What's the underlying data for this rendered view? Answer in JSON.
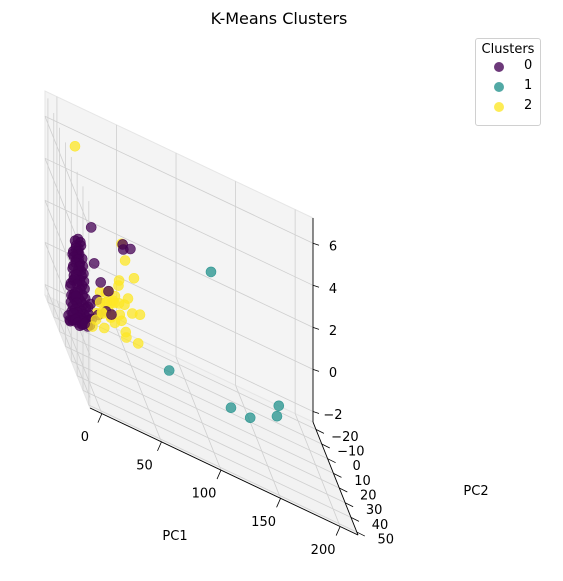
{
  "chart_data": {
    "type": "scatter",
    "projection": "3d",
    "title": "K-Means Clusters",
    "xlabel": "PC1",
    "ylabel": "PC2",
    "zlabel": "",
    "xlim": [
      -10,
      215
    ],
    "ylim": [
      -25,
      52
    ],
    "zlim": [
      -2.5,
      7.2
    ],
    "xticks": [
      "0",
      "50",
      "100",
      "150",
      "200"
    ],
    "yticks": [
      "−20",
      "−10",
      "0",
      "10",
      "20",
      "30",
      "40",
      "50"
    ],
    "zticks": [
      "−2",
      "0",
      "2",
      "4",
      "6"
    ],
    "grid": true,
    "legend": {
      "title": "Clusters",
      "placement": "top-right"
    },
    "series": [
      {
        "name": "0",
        "color": "#440154",
        "points": [
          [
            0,
            -5,
            -1.8
          ],
          [
            2,
            -4,
            -1.5
          ],
          [
            1,
            -3,
            -1.0
          ],
          [
            3,
            -2,
            -0.5
          ],
          [
            0,
            -1,
            0.0
          ],
          [
            2,
            0,
            0.5
          ],
          [
            1,
            1,
            1.0
          ],
          [
            3,
            2,
            1.4
          ],
          [
            0,
            3,
            1.8
          ],
          [
            2,
            4,
            2.2
          ],
          [
            1,
            -5,
            -2.0
          ],
          [
            3,
            -4,
            -1.2
          ],
          [
            0,
            -2,
            -0.2
          ],
          [
            2,
            -1,
            0.2
          ],
          [
            1,
            0,
            0.8
          ],
          [
            3,
            1,
            1.2
          ],
          [
            0,
            2,
            1.6
          ],
          [
            2,
            3,
            2.0
          ],
          [
            1,
            4,
            2.4
          ],
          [
            3,
            5,
            2.6
          ],
          [
            4,
            -5,
            -1.6
          ],
          [
            5,
            -4,
            -1.3
          ],
          [
            4,
            -3,
            -0.8
          ],
          [
            6,
            -2,
            -0.3
          ],
          [
            5,
            -1,
            0.1
          ],
          [
            4,
            0,
            0.6
          ],
          [
            6,
            1,
            1.1
          ],
          [
            5,
            2,
            1.5
          ],
          [
            4,
            3,
            1.9
          ],
          [
            6,
            4,
            2.3
          ],
          [
            5,
            -5,
            -1.9
          ],
          [
            6,
            -3,
            -0.9
          ],
          [
            4,
            -2,
            -0.4
          ],
          [
            5,
            0,
            0.3
          ],
          [
            6,
            2,
            1.3
          ],
          [
            4,
            4,
            2.1
          ],
          [
            5,
            5,
            2.5
          ],
          [
            7,
            -4,
            -1.4
          ],
          [
            7,
            -2,
            -0.6
          ],
          [
            7,
            0,
            0.4
          ],
          [
            7,
            2,
            1.0
          ],
          [
            7,
            4,
            1.7
          ],
          [
            8,
            -5,
            -1.7
          ],
          [
            8,
            -3,
            -1.1
          ],
          [
            8,
            -1,
            -0.1
          ],
          [
            8,
            1,
            0.7
          ],
          [
            8,
            3,
            1.3
          ],
          [
            9,
            -4,
            -1.5
          ],
          [
            9,
            -2,
            -0.7
          ],
          [
            9,
            0,
            0.2
          ],
          [
            9,
            2,
            0.9
          ],
          [
            10,
            -5,
            -1.8
          ],
          [
            10,
            -3,
            -1.2
          ],
          [
            10,
            -1,
            -0.3
          ],
          [
            10,
            1,
            0.5
          ],
          [
            11,
            -4,
            -1.6
          ],
          [
            11,
            -2,
            -0.8
          ],
          [
            11,
            0,
            0.1
          ],
          [
            12,
            -5,
            -1.9
          ],
          [
            12,
            -3,
            -1.3
          ],
          [
            12,
            -1,
            -0.4
          ],
          [
            13,
            -4,
            -1.7
          ],
          [
            13,
            -2,
            -0.9
          ],
          [
            14,
            -5,
            -1.8
          ],
          [
            14,
            -3,
            -1.4
          ],
          [
            15,
            -4,
            -1.6
          ],
          [
            16,
            -5,
            -1.9
          ],
          [
            2,
            -6,
            -2.1
          ],
          [
            4,
            -6,
            -2.0
          ],
          [
            6,
            -6,
            -1.9
          ],
          [
            8,
            -6,
            -2.0
          ],
          [
            10,
            -6,
            -2.1
          ],
          [
            12,
            -6,
            -2.0
          ],
          [
            14,
            -6,
            -1.9
          ],
          [
            3,
            -3,
            -0.7
          ],
          [
            5,
            -3,
            -0.6
          ],
          [
            3,
            -1,
            0.3
          ],
          [
            5,
            1,
            0.9
          ],
          [
            3,
            3,
            1.7
          ],
          [
            5,
            3,
            1.8
          ],
          [
            1,
            2,
            1.5
          ],
          [
            1,
            -2,
            -0.6
          ],
          [
            15,
            -2,
            -0.8
          ],
          [
            16,
            -3,
            -1.2
          ],
          [
            17,
            -4,
            -1.5
          ],
          [
            18,
            -5,
            -1.8
          ],
          [
            17,
            -2,
            -0.6
          ],
          [
            19,
            -4,
            -1.4
          ],
          [
            26,
            -3,
            0.6
          ],
          [
            33,
            -4,
            0.3
          ],
          [
            30,
            -2,
            -0.6
          ],
          [
            36,
            -5,
            -0.8
          ],
          [
            22,
            -1,
            -0.2
          ],
          [
            24,
            -3,
            -1.0
          ],
          [
            21,
            -4,
            1.3
          ],
          [
            18,
            -3,
            3.0
          ],
          [
            43,
            1,
            2.9
          ],
          [
            48,
            3,
            3.2
          ],
          [
            41,
            4,
            3.3
          ]
        ]
      },
      {
        "name": "1",
        "color": "#21918c",
        "points": [
          [
            95,
            45,
            6.3
          ],
          [
            84,
            -4,
            -2.1
          ],
          [
            130,
            8,
            -1.8
          ],
          [
            150,
            0,
            -2.3
          ],
          [
            175,
            -5,
            -1.9
          ],
          [
            175,
            -2,
            -1.2
          ]
        ]
      },
      {
        "name": "2",
        "color": "#fde725",
        "points": [
          [
            0,
            6,
            7.0
          ],
          [
            40,
            4,
            3.3
          ],
          [
            42,
            6,
            2.7
          ],
          [
            50,
            5,
            2.0
          ],
          [
            38,
            4,
            1.5
          ],
          [
            37,
            5,
            1.3
          ],
          [
            45,
            5,
            0.9
          ],
          [
            35,
            3,
            0.6
          ],
          [
            30,
            3,
            0.7
          ],
          [
            27,
            2,
            0.0
          ],
          [
            33,
            4,
            0.4
          ],
          [
            55,
            5,
            0.4
          ],
          [
            35,
            -4,
            -0.9
          ],
          [
            28,
            -4,
            -0.9
          ],
          [
            23,
            -5,
            -1.4
          ],
          [
            43,
            -2,
            -0.7
          ],
          [
            48,
            -4,
            -1.5
          ],
          [
            47,
            -3,
            -1.2
          ],
          [
            57,
            -2,
            -1.4
          ],
          [
            30,
            -1,
            -0.1
          ],
          [
            33,
            1,
            0.1
          ],
          [
            32,
            -1,
            -0.5
          ],
          [
            25,
            -2,
            -0.3
          ],
          [
            36,
            0,
            0.1
          ],
          [
            30,
            -5,
            -1.6
          ],
          [
            20,
            -5,
            -1.8
          ],
          [
            41,
            -1,
            -0.4
          ],
          [
            38,
            -3,
            -1.0
          ],
          [
            27,
            -3,
            -0.8
          ],
          [
            34,
            -2,
            -0.7
          ],
          [
            39,
            2,
            0.3
          ],
          [
            44,
            1,
            0.3
          ],
          [
            51,
            0,
            0.0
          ],
          [
            29,
            0,
            0.4
          ],
          [
            24,
            0,
            0.3
          ],
          [
            22,
            -2,
            -0.9
          ]
        ]
      }
    ]
  }
}
